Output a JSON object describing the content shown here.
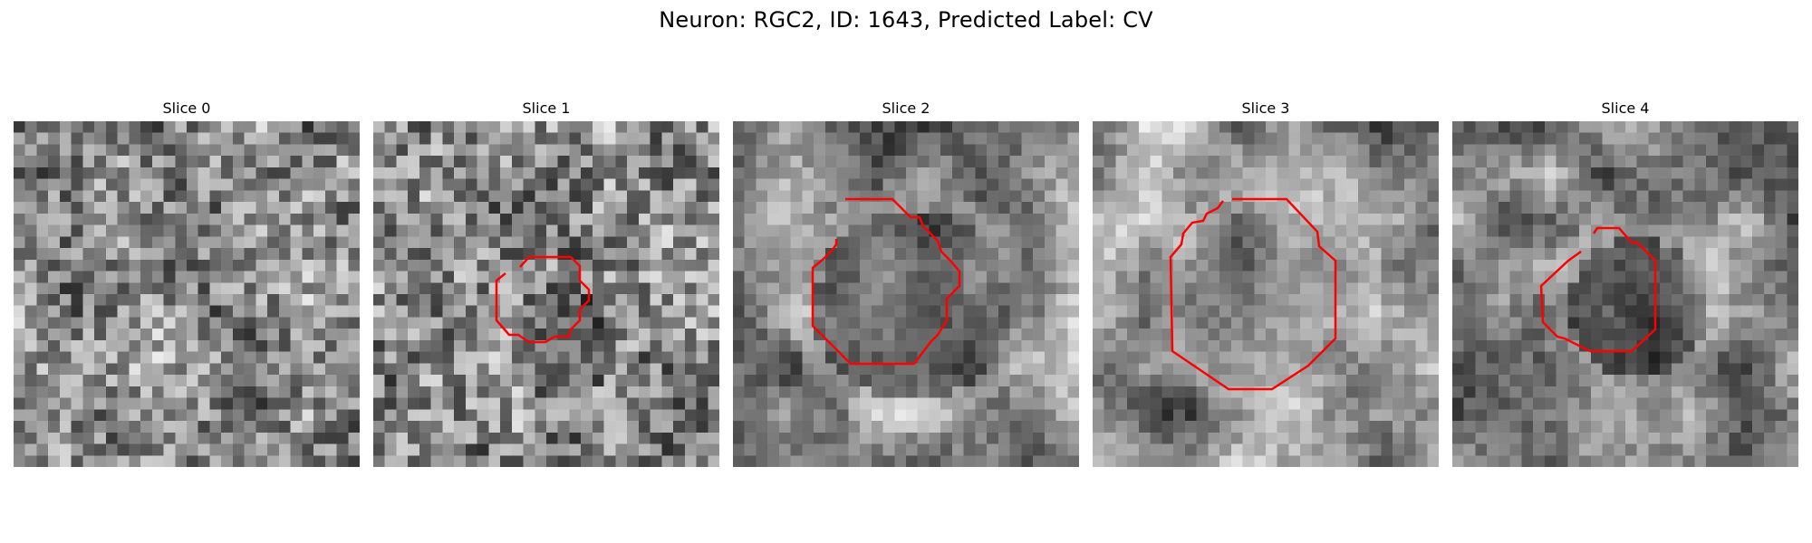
{
  "figure": {
    "title": "Neuron: RGC2, ID: 1643, Predicted Label: CV",
    "contour_color": "#ff0000",
    "colormap": "gray",
    "slices": [
      {
        "label": "Slice 0",
        "has_contour": false,
        "blob_cx": 0.5,
        "blob_cy": 0.5,
        "blob_r": 0.0,
        "seed": 11
      },
      {
        "label": "Slice 1",
        "has_contour": true,
        "blob_cx": 0.53,
        "blob_cy": 0.62,
        "blob_r": 0.16,
        "seed": 23
      },
      {
        "label": "Slice 2",
        "has_contour": true,
        "blob_cx": 0.5,
        "blob_cy": 0.52,
        "blob_r": 0.28,
        "seed": 37
      },
      {
        "label": "Slice 3",
        "has_contour": true,
        "blob_cx": 0.49,
        "blob_cy": 0.5,
        "blob_r": 0.26,
        "seed": 41
      },
      {
        "label": "Slice 4",
        "has_contour": true,
        "blob_cx": 0.52,
        "blob_cy": 0.52,
        "blob_r": 0.2,
        "seed": 53
      }
    ]
  }
}
